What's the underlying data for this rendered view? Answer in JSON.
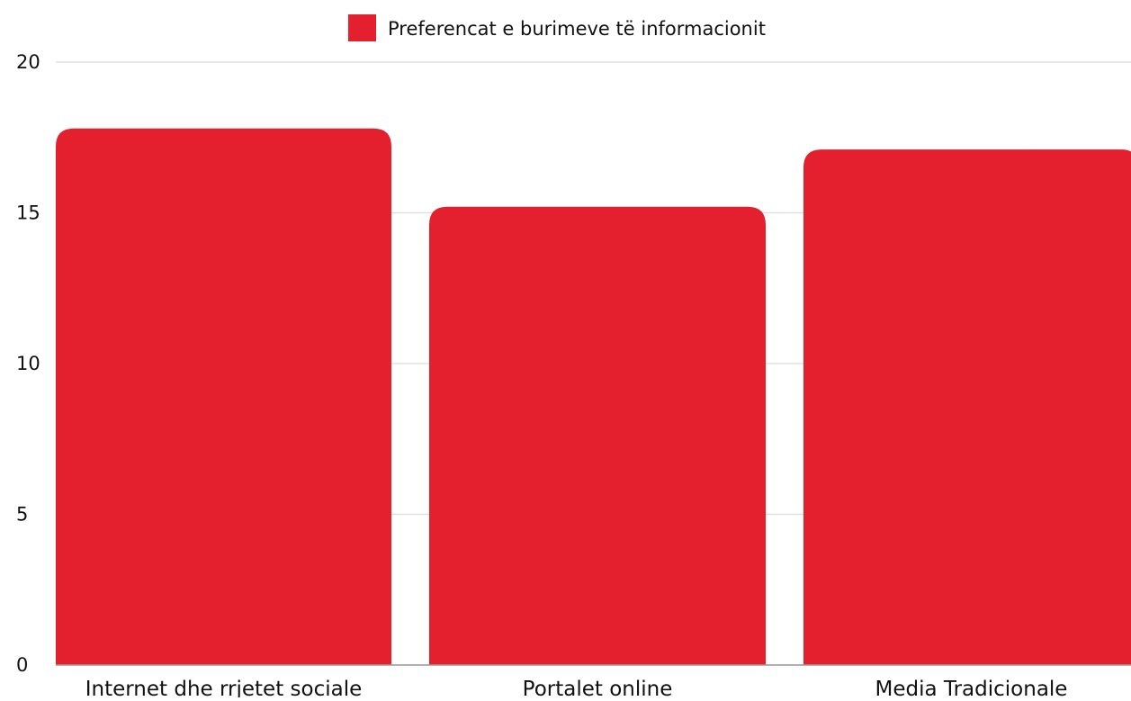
{
  "chart_data": {
    "type": "bar",
    "categories": [
      "Internet dhe rrjetet sociale",
      "Portalet online",
      "Media Tradicionale"
    ],
    "series": [
      {
        "name": "Preferencat e burimeve të informacionit",
        "values": [
          17.8,
          15.2,
          17.1
        ],
        "color": "#E4202F"
      }
    ],
    "ylim": [
      0,
      20
    ],
    "yticks": [
      "0",
      "5",
      "10",
      "15",
      "20"
    ],
    "grid": true,
    "legend_position": "top-center"
  }
}
